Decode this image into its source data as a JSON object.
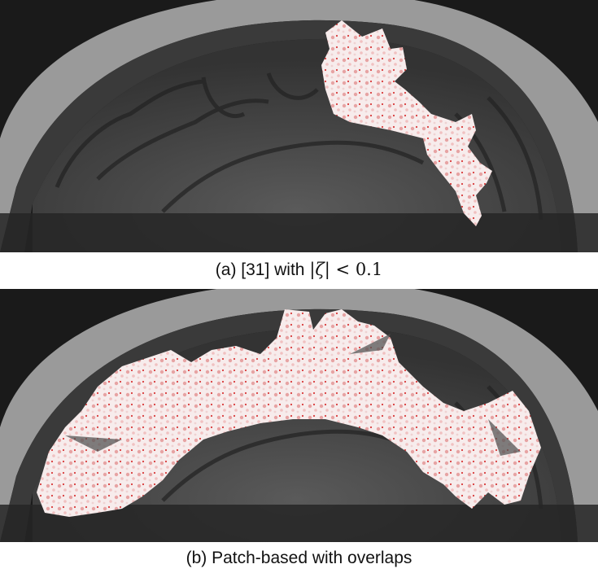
{
  "figure": {
    "panel_a": {
      "caption_prefix": "(a) [31] with ",
      "caption_math_left": "|ζ|",
      "caption_math_rel": " < ",
      "caption_math_num": "0.1"
    },
    "panel_b": {
      "caption": "(b) Patch-based with overlaps"
    }
  },
  "colors": {
    "background": "#1b1b1b",
    "skull": "#d4d4d4",
    "brain_tissue": "#4a4a4a",
    "overlay_base": "#f6e9e9",
    "overlay_spot": "#d62020"
  }
}
